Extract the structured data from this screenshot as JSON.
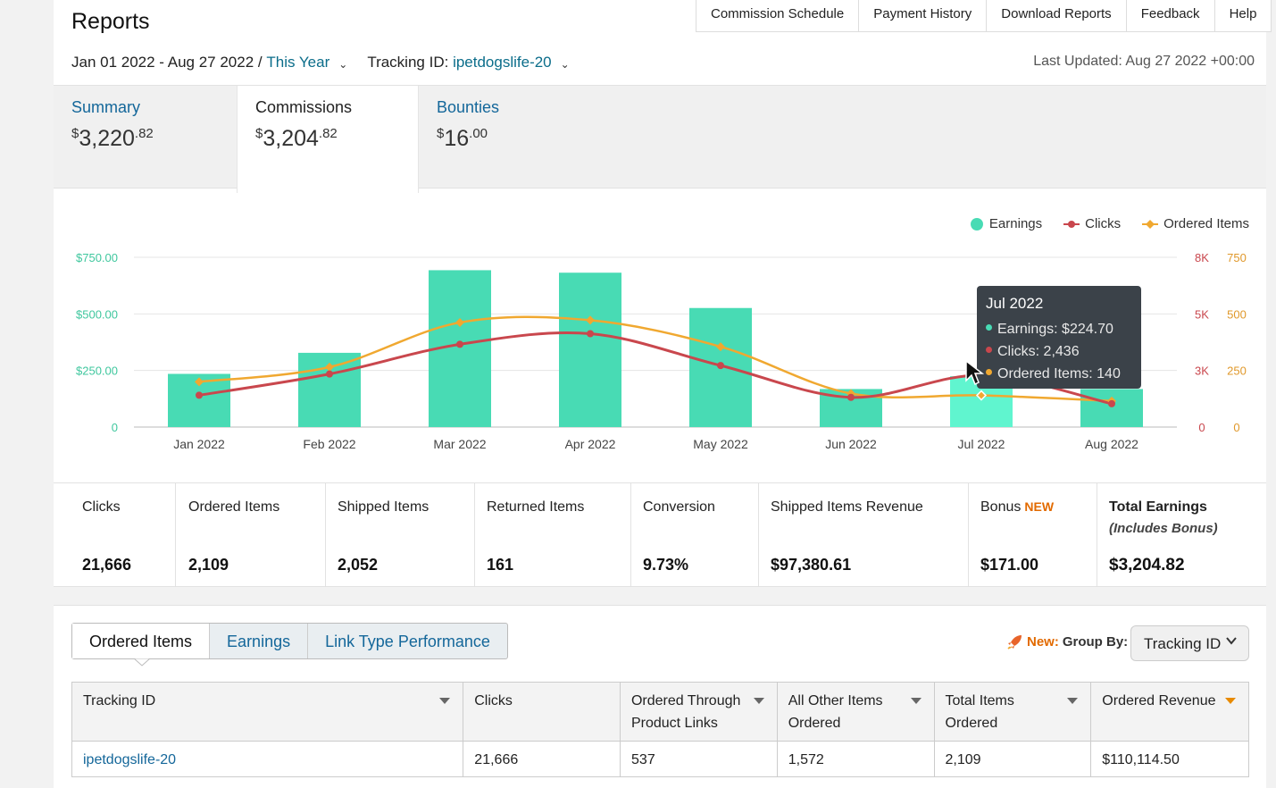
{
  "header": {
    "title": "Reports",
    "nav": [
      "Commission Schedule",
      "Payment History",
      "Download Reports",
      "Feedback",
      "Help"
    ],
    "date_range": "Jan 01 2022 - Aug 27 2022 /",
    "date_preset": "This Year",
    "tracking_label": "Tracking ID:",
    "tracking_value": "ipetdogslife-20",
    "last_updated": "Last Updated: Aug 27 2022 +00:00"
  },
  "summary_tabs": [
    {
      "label": "Summary",
      "amount_int": "3,220",
      "amount_dec": ".82"
    },
    {
      "label": "Commissions",
      "amount_int": "3,204",
      "amount_dec": ".82"
    },
    {
      "label": "Bounties",
      "amount_int": "16",
      "amount_dec": ".00"
    }
  ],
  "currency_symbol": "$",
  "colors": {
    "earnings": "#48dbb4",
    "earnings_hover": "#60f5cf",
    "clicks": "#c9474d",
    "ordered": "#f0a830",
    "link": "#14679a"
  },
  "legend": [
    "Earnings",
    "Clicks",
    "Ordered Items"
  ],
  "chart_data": {
    "type": "bar",
    "categories": [
      "Jan 2022",
      "Feb 2022",
      "Mar 2022",
      "Apr 2022",
      "May 2022",
      "Jun 2022",
      "Jul 2022",
      "Aug 2022"
    ],
    "series": [
      {
        "name": "Earnings",
        "type": "bar",
        "axis": "left",
        "values": [
          235,
          328,
          693,
          682,
          526,
          168,
          224.7,
          168
        ]
      },
      {
        "name": "Clicks",
        "type": "line",
        "axis": "right1",
        "values": [
          1500,
          2500,
          3900,
          4400,
          2900,
          1400,
          2436,
          1100
        ]
      },
      {
        "name": "Ordered Items",
        "type": "line",
        "axis": "right2",
        "values": [
          200,
          265,
          462,
          472,
          355,
          148,
          140,
          115
        ]
      }
    ],
    "left_axis": {
      "ticks": [
        "$750.00",
        "$500.00",
        "$250.00",
        "0"
      ],
      "range": [
        0,
        750
      ]
    },
    "right1_axis": {
      "ticks": [
        "8K",
        "5K",
        "3K",
        "0"
      ],
      "range": [
        0,
        8000
      ]
    },
    "right2_axis": {
      "ticks": [
        "750",
        "500",
        "250",
        "0"
      ],
      "range": [
        0,
        750
      ]
    },
    "highlight_index": 6,
    "tooltip": {
      "title": "Jul 2022",
      "earnings": "Earnings: $224.70",
      "clicks": "Clicks: 2,436",
      "ordered": "Ordered Items: 140"
    }
  },
  "metrics": [
    {
      "label": "Clicks",
      "value": "21,666"
    },
    {
      "label": "Ordered Items",
      "value": "2,109"
    },
    {
      "label": "Shipped Items",
      "value": "2,052"
    },
    {
      "label": "Returned Items",
      "value": "161"
    },
    {
      "label": "Conversion",
      "value": "9.73%"
    },
    {
      "label": "Shipped Items Revenue",
      "value": "$97,380.61"
    },
    {
      "label": "Bonus",
      "badge": "NEW",
      "value": "$171.00"
    },
    {
      "label": "Total Earnings",
      "sub": "(Includes Bonus)",
      "value": "$3,204.82"
    }
  ],
  "bottom_tabs": [
    "Ordered Items",
    "Earnings",
    "Link Type Performance"
  ],
  "group_by": {
    "new": "New:",
    "label": "Group By:",
    "value": "Tracking ID"
  },
  "table": {
    "headers": [
      "Tracking ID",
      "Clicks",
      "Ordered Through Product Links",
      "All Other Items Ordered",
      "Total Items Ordered",
      "Ordered Revenue"
    ],
    "rows": [
      [
        "ipetdogslife-20",
        "21,666",
        "537",
        "1,572",
        "2,109",
        "$110,114.50"
      ]
    ]
  }
}
